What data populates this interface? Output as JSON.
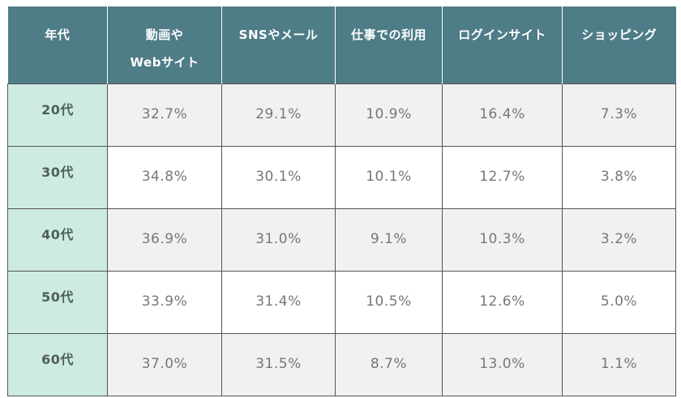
{
  "table": {
    "headers": [
      "年代",
      "動画や\nWebサイト",
      "SNSやメール",
      "仕事での利用",
      "ログインサイト",
      "ショッピング"
    ],
    "header_lines": [
      [
        "年代"
      ],
      [
        "動画や",
        "Webサイト"
      ],
      [
        "SNSやメール"
      ],
      [
        "仕事での利用"
      ],
      [
        "ログインサイト"
      ],
      [
        "ショッピング"
      ]
    ],
    "rows": [
      {
        "age": "20代",
        "values": [
          "32.7%",
          "29.1%",
          "10.9%",
          "16.4%",
          "7.3%"
        ]
      },
      {
        "age": "30代",
        "values": [
          "34.8%",
          "30.1%",
          "10.1%",
          "12.7%",
          "3.8%"
        ]
      },
      {
        "age": "40代",
        "values": [
          "36.9%",
          "31.0%",
          "9.1%",
          "10.3%",
          "3.2%"
        ]
      },
      {
        "age": "50代",
        "values": [
          "33.9%",
          "31.4%",
          "10.5%",
          "12.6%",
          "5.0%"
        ]
      },
      {
        "age": "60代",
        "values": [
          "37.0%",
          "31.5%",
          "8.7%",
          "13.0%",
          "1.1%"
        ]
      }
    ]
  },
  "colors": {
    "header_bg": "#4e7c87",
    "header_text": "#ffffff",
    "age_col_bg": "#cdebe2",
    "stripe_bg": "#f1f1f1",
    "border": "#555555",
    "value_text": "#777777"
  },
  "chart_data": {
    "type": "table",
    "title": "",
    "columns": [
      "年代",
      "動画やWebサイト",
      "SNSやメール",
      "仕事での利用",
      "ログインサイト",
      "ショッピング"
    ],
    "categories": [
      "20代",
      "30代",
      "40代",
      "50代",
      "60代"
    ],
    "series": [
      {
        "name": "動画やWebサイト",
        "values": [
          32.7,
          34.8,
          36.9,
          33.9,
          37.0
        ]
      },
      {
        "name": "SNSやメール",
        "values": [
          29.1,
          30.1,
          31.0,
          31.4,
          31.5
        ]
      },
      {
        "name": "仕事での利用",
        "values": [
          10.9,
          10.1,
          9.1,
          10.5,
          8.7
        ]
      },
      {
        "name": "ログインサイト",
        "values": [
          16.4,
          12.7,
          10.3,
          12.6,
          13.0
        ]
      },
      {
        "name": "ショッピング",
        "values": [
          7.3,
          3.8,
          3.2,
          5.0,
          1.1
        ]
      }
    ],
    "unit": "%"
  }
}
